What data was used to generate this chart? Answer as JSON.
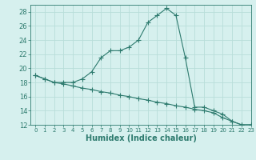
{
  "line1_x": [
    0,
    1,
    2,
    3,
    4,
    5,
    6,
    7,
    8,
    9,
    10,
    11,
    12,
    13,
    14,
    15,
    16,
    17,
    18,
    19,
    20,
    21,
    22,
    23
  ],
  "line1_y": [
    19.0,
    18.5,
    18.0,
    18.0,
    18.0,
    18.5,
    19.5,
    21.5,
    22.5,
    22.5,
    23.0,
    24.0,
    26.5,
    27.5,
    28.5,
    27.5,
    21.5,
    14.5,
    14.5,
    14.0,
    13.5,
    12.5,
    12.0,
    12.0
  ],
  "line2_x": [
    0,
    1,
    2,
    3,
    4,
    5,
    6,
    7,
    8,
    9,
    10,
    11,
    12,
    13,
    14,
    15,
    16,
    17,
    18,
    19,
    20,
    21,
    22,
    23
  ],
  "line2_y": [
    19.0,
    18.5,
    18.0,
    17.8,
    17.5,
    17.2,
    17.0,
    16.7,
    16.5,
    16.2,
    16.0,
    15.7,
    15.5,
    15.2,
    15.0,
    14.7,
    14.5,
    14.2,
    14.0,
    13.7,
    13.0,
    12.5,
    12.0,
    12.0
  ],
  "line_color": "#2d7a6e",
  "bg_color": "#d6f0ee",
  "grid_color": "#b8ddd9",
  "xlabel": "Humidex (Indice chaleur)",
  "ylim": [
    12,
    29
  ],
  "xlim": [
    -0.5,
    23
  ],
  "yticks": [
    12,
    14,
    16,
    18,
    20,
    22,
    24,
    26,
    28
  ],
  "xticks": [
    0,
    1,
    2,
    3,
    4,
    5,
    6,
    7,
    8,
    9,
    10,
    11,
    12,
    13,
    14,
    15,
    16,
    17,
    18,
    19,
    20,
    21,
    22,
    23
  ],
  "marker": "+",
  "linewidth": 0.8,
  "markersize": 4,
  "xlabel_fontsize": 7,
  "tick_fontsize": 5,
  "ytick_fontsize": 6
}
